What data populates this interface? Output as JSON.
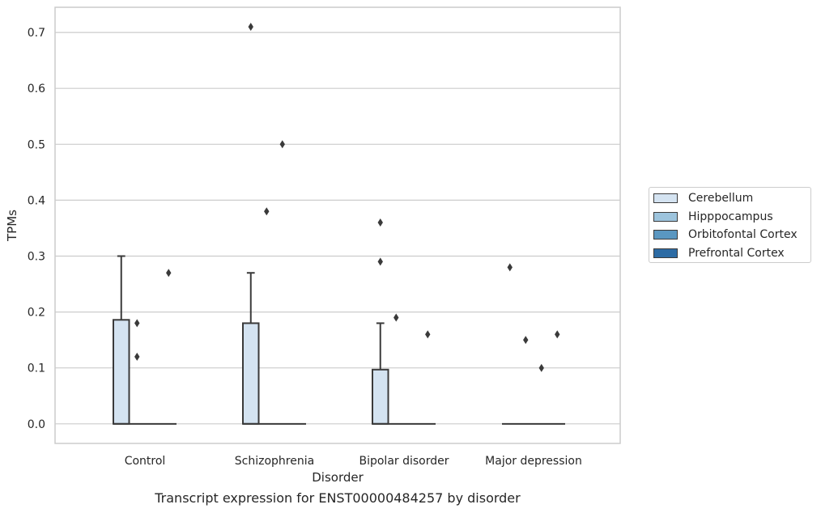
{
  "chart_data": {
    "type": "box",
    "xlabel": "Disorder",
    "ylabel": "TPMs",
    "caption": "Transcript expression for ENST00000484257 by disorder",
    "categories": [
      "Control",
      "Schizophrenia",
      "Bipolar disorder",
      "Major depression"
    ],
    "ylim": [
      -0.035,
      0.745
    ],
    "yticks": [
      "0.0",
      "0.1",
      "0.2",
      "0.3",
      "0.4",
      "0.5",
      "0.6",
      "0.7"
    ],
    "ytick_values": [
      0.0,
      0.1,
      0.2,
      0.3,
      0.4,
      0.5,
      0.6,
      0.7
    ],
    "grid": "horizontal",
    "legend_position": "right",
    "series": [
      {
        "name": "Cerebellum",
        "color": "#d4e3f1",
        "boxes": [
          {
            "q1": 0.0,
            "median": 0.0,
            "q3": 0.186,
            "whislo": 0.0,
            "whishi": 0.3,
            "fliers": []
          },
          {
            "q1": 0.0,
            "median": 0.0,
            "q3": 0.18,
            "whislo": 0.0,
            "whishi": 0.27,
            "fliers": [
              0.71
            ]
          },
          {
            "q1": 0.0,
            "median": 0.0,
            "q3": 0.097,
            "whislo": 0.0,
            "whishi": 0.18,
            "fliers": [
              0.29,
              0.36
            ]
          },
          {
            "q1": 0.0,
            "median": 0.0,
            "q3": 0.0,
            "whislo": 0.0,
            "whishi": 0.0,
            "fliers": [
              0.28
            ]
          }
        ]
      },
      {
        "name": "Hipppocampus",
        "color": "#9dc4dd",
        "boxes": [
          {
            "q1": 0.0,
            "median": 0.0,
            "q3": 0.0,
            "whislo": 0.0,
            "whishi": 0.0,
            "fliers": [
              0.12,
              0.18
            ]
          },
          {
            "q1": 0.0,
            "median": 0.0,
            "q3": 0.0,
            "whislo": 0.0,
            "whishi": 0.0,
            "fliers": [
              0.38
            ]
          },
          {
            "q1": 0.0,
            "median": 0.0,
            "q3": 0.0,
            "whislo": 0.0,
            "whishi": 0.0,
            "fliers": [
              0.19
            ]
          },
          {
            "q1": 0.0,
            "median": 0.0,
            "q3": 0.0,
            "whislo": 0.0,
            "whishi": 0.0,
            "fliers": [
              0.15
            ]
          }
        ]
      },
      {
        "name": "Orbitofontal Cortex",
        "color": "#5a97c1",
        "boxes": [
          {
            "q1": 0.0,
            "median": 0.0,
            "q3": 0.0,
            "whislo": 0.0,
            "whishi": 0.0,
            "fliers": []
          },
          {
            "q1": 0.0,
            "median": 0.0,
            "q3": 0.0,
            "whislo": 0.0,
            "whishi": 0.0,
            "fliers": [
              0.5
            ]
          },
          {
            "q1": 0.0,
            "median": 0.0,
            "q3": 0.0,
            "whislo": 0.0,
            "whishi": 0.0,
            "fliers": []
          },
          {
            "q1": 0.0,
            "median": 0.0,
            "q3": 0.0,
            "whislo": 0.0,
            "whishi": 0.0,
            "fliers": [
              0.1
            ]
          }
        ]
      },
      {
        "name": "Prefrontal Cortex",
        "color": "#2c6ba4",
        "boxes": [
          {
            "q1": 0.0,
            "median": 0.0,
            "q3": 0.0,
            "whislo": 0.0,
            "whishi": 0.0,
            "fliers": [
              0.27
            ]
          },
          {
            "q1": 0.0,
            "median": 0.0,
            "q3": 0.0,
            "whislo": 0.0,
            "whishi": 0.0,
            "fliers": []
          },
          {
            "q1": 0.0,
            "median": 0.0,
            "q3": 0.0,
            "whislo": 0.0,
            "whishi": 0.0,
            "fliers": [
              0.16
            ]
          },
          {
            "q1": 0.0,
            "median": 0.0,
            "q3": 0.0,
            "whislo": 0.0,
            "whishi": 0.0,
            "fliers": [
              0.16
            ]
          }
        ]
      }
    ]
  },
  "colors": {
    "grid": "#cccccc",
    "frame": "#cccccc",
    "line": "#3a3a3a",
    "text": "#262626"
  }
}
